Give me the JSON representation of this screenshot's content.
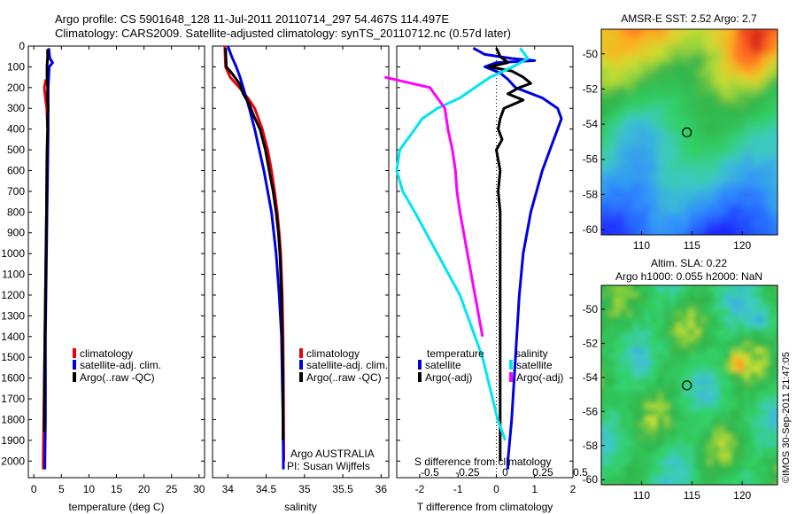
{
  "header": {
    "line1": "Argo profile: CS 5901648_128 11-Jul-2011 20110714_297 54.467S 114.497E",
    "line2": "Climatology: CARS2009. Satellite-adjusted climatology: synTS_20110712.nc (0.57d later)"
  },
  "footer_stamp": "©IMOS 30-Sep-2011 21:47:05",
  "chart_data": [
    {
      "id": "temperature",
      "type": "line",
      "xlabel": "temperature (deg C)",
      "ylabel": "",
      "xlim": [
        -1,
        31
      ],
      "ylim": [
        2080,
        0
      ],
      "xticks": [
        0,
        5,
        10,
        15,
        20,
        25,
        30
      ],
      "xticklabels": [
        "0",
        "5",
        "10",
        "15",
        "20",
        "25",
        "30"
      ],
      "yticks": [
        0,
        100,
        200,
        300,
        400,
        500,
        600,
        700,
        800,
        900,
        1000,
        1100,
        1200,
        1300,
        1400,
        1500,
        1600,
        1700,
        1800,
        1900,
        2000
      ],
      "yticklabels": [
        "0",
        "100",
        "200",
        "300",
        "400",
        "500",
        "600",
        "700",
        "800",
        "900",
        "1000",
        "1100",
        "1200",
        "1300",
        "1400",
        "1500",
        "1600",
        "1700",
        "1800",
        "1900",
        "2000"
      ],
      "legend": [
        "climatology",
        "satellite-adj. clim.",
        "Argo(..raw -QC)"
      ],
      "legend_colors": [
        "#e8000b",
        "#0000e0",
        "#000000"
      ],
      "series": [
        {
          "name": "climatology",
          "color": "#e8000b",
          "depth": [
            160,
            200,
            250,
            300,
            400,
            600,
            800,
            1000,
            1200,
            1400,
            1600,
            1800,
            2000,
            2040
          ],
          "values": [
            2.2,
            1.9,
            2.1,
            2.35,
            2.5,
            2.4,
            2.3,
            2.2,
            2.1,
            2.0,
            1.9,
            1.8,
            1.7,
            1.7
          ]
        },
        {
          "name": "satellite-adj. clim.",
          "color": "#0000e0",
          "depth": [
            10,
            60,
            80,
            100,
            150,
            200,
            300,
            400,
            600,
            800,
            1000,
            1200,
            1400,
            1600,
            1800,
            2000,
            2040
          ],
          "values": [
            2.7,
            2.9,
            3.4,
            2.8,
            2.7,
            2.6,
            2.6,
            2.6,
            2.5,
            2.4,
            2.3,
            2.2,
            2.1,
            2.1,
            2.1,
            2.0,
            2.0
          ]
        },
        {
          "name": "Argo(..raw -QC)",
          "color": "#000000",
          "depth": [
            15,
            50,
            100,
            150,
            200,
            250,
            300,
            350,
            400,
            500,
            600,
            800,
            1000,
            1200,
            1400,
            1600,
            1800,
            1860
          ],
          "values": [
            2.5,
            2.5,
            2.4,
            2.4,
            2.5,
            2.45,
            2.6,
            2.45,
            2.5,
            2.4,
            2.35,
            2.3,
            2.2,
            2.1,
            2.0,
            1.95,
            1.9,
            1.9
          ]
        }
      ]
    },
    {
      "id": "salinity",
      "type": "line",
      "xlabel": "salinity",
      "ylabel": "",
      "xlim": [
        33.8,
        36.1
      ],
      "ylim": [
        2080,
        0
      ],
      "xticks": [
        34,
        34.5,
        35,
        35.5,
        36
      ],
      "xticklabels": [
        "34",
        "34.5",
        "35",
        "35.5",
        "36"
      ],
      "legend": [
        "climatology",
        "satellite-adj. clim.",
        "Argo(..raw -QC)"
      ],
      "legend_colors": [
        "#e8000b",
        "#0000e0",
        "#000000"
      ],
      "annotations": [
        "Argo AUSTRALIA",
        "PI: Susan Wijffels"
      ],
      "series": [
        {
          "name": "climatology",
          "color": "#e8000b",
          "depth": [
            0,
            100,
            150,
            200,
            250,
            300,
            400,
            500,
            600,
            700,
            800,
            900,
            1000,
            1200,
            1400,
            1600,
            1800,
            2000
          ],
          "values": [
            33.96,
            33.97,
            34.03,
            34.15,
            34.26,
            34.35,
            34.45,
            34.52,
            34.57,
            34.61,
            34.645,
            34.67,
            34.69,
            34.71,
            34.72,
            34.725,
            34.728,
            34.73
          ]
        },
        {
          "name": "satellite-adj. clim.",
          "color": "#0000e0",
          "depth": [
            0,
            50,
            100,
            150,
            200,
            250,
            300,
            400,
            500,
            600,
            700,
            800,
            900,
            1000,
            1200,
            1400,
            1600,
            1800,
            2000,
            2040
          ],
          "values": [
            34.0,
            34.05,
            34.11,
            34.16,
            34.2,
            34.24,
            34.28,
            34.35,
            34.41,
            34.47,
            34.52,
            34.57,
            34.6,
            34.63,
            34.67,
            34.7,
            34.71,
            34.72,
            34.725,
            34.725
          ]
        },
        {
          "name": "Argo(..raw -QC)",
          "color": "#000000",
          "depth": [
            10,
            100,
            130,
            180,
            230,
            280,
            330,
            400,
            500,
            600,
            700,
            800,
            900,
            1000,
            1200,
            1400,
            1600,
            1800,
            1900
          ],
          "values": [
            33.97,
            33.98,
            34.05,
            34.15,
            34.2,
            34.28,
            34.33,
            34.42,
            34.49,
            34.54,
            34.59,
            34.63,
            34.66,
            34.68,
            34.7,
            34.71,
            34.72,
            34.72,
            34.72
          ]
        }
      ]
    },
    {
      "id": "difference",
      "type": "line",
      "xlabel": "T difference from climatology",
      "x2label": "S difference from climatology",
      "xlim": [
        -2.6,
        2.0
      ],
      "ylim": [
        2080,
        0
      ],
      "xticks": [
        -2,
        -1,
        0,
        1,
        2
      ],
      "xticklabels": [
        "-2",
        "-1",
        "0",
        "1",
        "2"
      ],
      "x2ticks": [
        -0.5,
        -0.25,
        0,
        0.25,
        0.5
      ],
      "x2ticklabels": [
        "-0.5",
        "-0.25",
        "0",
        "0.25",
        "0.5"
      ],
      "legend_temperature_title": "temperature",
      "legend_salinity_title": "salinity",
      "legend": [
        "satellite",
        "Argo(-adj)",
        "satellite",
        "Argo(-adj)"
      ],
      "legend_colors": [
        "#0000e0",
        "#000000",
        "#00e5ee",
        "#ff00ff"
      ],
      "series": [
        {
          "name": "T satellite",
          "color": "#0000e0",
          "depth": [
            10,
            40,
            60,
            70,
            80,
            100,
            130,
            160,
            200,
            250,
            300,
            350,
            400,
            500,
            600,
            800,
            1000,
            1200,
            1500,
            1800,
            2000,
            2040
          ],
          "values": [
            -0.6,
            -0.3,
            0.4,
            1.0,
            0.0,
            -0.3,
            0.1,
            0.3,
            0.5,
            1.2,
            1.6,
            1.7,
            1.6,
            1.4,
            1.2,
            0.9,
            0.7,
            0.6,
            0.5,
            0.4,
            0.3,
            0.3
          ]
        },
        {
          "name": "T Argo(-adj)",
          "color": "#000000",
          "depth": [
            10,
            50,
            80,
            100,
            120,
            150,
            180,
            200,
            230,
            260,
            300,
            350,
            400,
            450,
            500,
            600,
            700,
            800,
            1000,
            1200,
            1400,
            1600,
            1800,
            2000
          ],
          "values": [
            0.0,
            0.1,
            0.3,
            -0.2,
            0.4,
            0.7,
            0.9,
            0.6,
            0.3,
            0.7,
            0.2,
            0.1,
            0.05,
            0.15,
            0.0,
            0.1,
            0.05,
            0.1,
            0.1,
            0.1,
            0.1,
            0.1,
            0.1,
            0.1
          ]
        },
        {
          "name": "S satellite",
          "color": "#00e5ee",
          "depth": [
            10,
            60,
            100,
            150,
            200,
            250,
            300,
            350,
            400,
            500,
            600,
            700,
            800,
            1000,
            1200,
            1500,
            1800,
            1900
          ],
          "values": [
            0.1,
            0.15,
            0.05,
            -0.1,
            -0.2,
            -0.3,
            -0.45,
            -0.55,
            -0.6,
            -0.7,
            -0.72,
            -0.68,
            -0.6,
            -0.45,
            -0.3,
            -0.15,
            -0.05,
            0.0
          ]
        },
        {
          "name": "S Argo(-adj)",
          "color": "#ff00ff",
          "depth": [
            150,
            200,
            250,
            300,
            400,
            500,
            600,
            700,
            800,
            1000,
            1200,
            1400
          ],
          "values": [
            -0.8,
            -0.5,
            -0.45,
            -0.4,
            -0.38,
            -0.35,
            -0.33,
            -0.32,
            -0.3,
            -0.25,
            -0.2,
            -0.15
          ]
        }
      ]
    },
    {
      "id": "sst_map",
      "type": "heatmap",
      "title": "AMSR-E SST: 2.52 Argo: 2.7",
      "xlim": [
        106,
        123.5
      ],
      "ylim": [
        -60.3,
        -48.6
      ],
      "xticks": [
        110,
        115,
        120
      ],
      "xticklabels": [
        "110",
        "115",
        "120"
      ],
      "yticks": [
        -50,
        -52,
        -54,
        -56,
        -58,
        -60
      ],
      "yticklabels": [
        "-50",
        "-52",
        "-54",
        "-56",
        "-58",
        "-60"
      ],
      "marker": {
        "lon": 114.497,
        "lat": -54.467
      }
    },
    {
      "id": "sla_map",
      "type": "heatmap",
      "title_line1": "Altim. SLA: 0.22",
      "title_line2": "Argo h1000: 0.055 h2000: NaN",
      "xlim": [
        106,
        123.5
      ],
      "ylim": [
        -60.3,
        -48.6
      ],
      "xticks": [
        110,
        115,
        120
      ],
      "xticklabels": [
        "110",
        "115",
        "120"
      ],
      "yticks": [
        -50,
        -52,
        -54,
        -56,
        -58,
        -60
      ],
      "yticklabels": [
        "-50",
        "-52",
        "-54",
        "-56",
        "-58",
        "-60"
      ],
      "marker": {
        "lon": 114.497,
        "lat": -54.467
      }
    }
  ]
}
